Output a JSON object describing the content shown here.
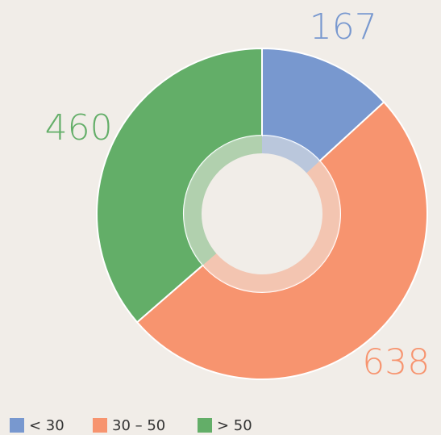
{
  "chart_data": {
    "type": "donut",
    "categories": [
      "< 30",
      "30 – 50",
      "> 50"
    ],
    "values": [
      167,
      638,
      460
    ],
    "colors": [
      "#7898cf",
      "#f7946f",
      "#63ae68"
    ]
  }
}
